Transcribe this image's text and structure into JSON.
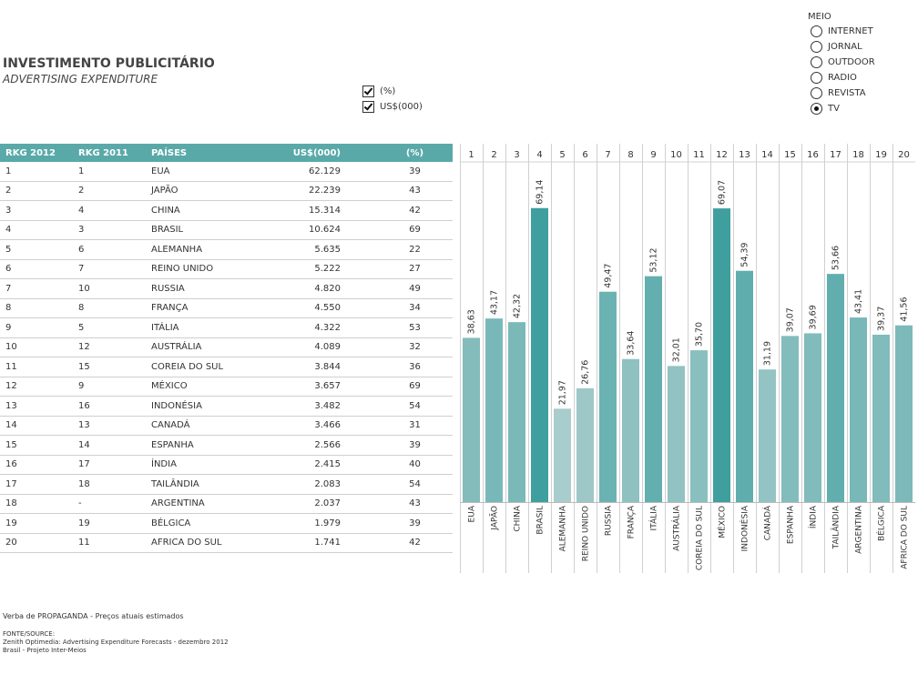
{
  "header": {
    "title": "INVESTIMENTO PUBLICITÁRIO",
    "subtitle": "ADVERTISING EXPENDITURE"
  },
  "checkboxes": [
    {
      "label": "(%)",
      "checked": true
    },
    {
      "label": "US$(000)",
      "checked": true
    }
  ],
  "meio": {
    "label": "MEIO",
    "options": [
      {
        "label": "INTERNET",
        "selected": false
      },
      {
        "label": "JORNAL",
        "selected": false
      },
      {
        "label": "OUTDOOR",
        "selected": false
      },
      {
        "label": "RADIO",
        "selected": false
      },
      {
        "label": "REVISTA",
        "selected": false
      },
      {
        "label": "TV",
        "selected": true
      }
    ]
  },
  "table": {
    "headers": [
      "RKG 2012",
      "RKG 2011",
      "PAÍSES",
      "US$(000)",
      "(%)"
    ],
    "rows": [
      [
        "1",
        "1",
        "EUA",
        "62.129",
        "39"
      ],
      [
        "2",
        "2",
        "JAPÃO",
        "22.239",
        "43"
      ],
      [
        "3",
        "4",
        "CHINA",
        "15.314",
        "42"
      ],
      [
        "4",
        "3",
        "BRASIL",
        "10.624",
        "69"
      ],
      [
        "5",
        "6",
        "ALEMANHA",
        "5.635",
        "22"
      ],
      [
        "6",
        "7",
        "REINO UNIDO",
        "5.222",
        "27"
      ],
      [
        "7",
        "10",
        "RUSSIA",
        "4.820",
        "49"
      ],
      [
        "8",
        "8",
        "FRANÇA",
        "4.550",
        "34"
      ],
      [
        "9",
        "5",
        "ITÁLIA",
        "4.322",
        "53"
      ],
      [
        "10",
        "12",
        "AUSTRÁLIA",
        "4.089",
        "32"
      ],
      [
        "11",
        "15",
        "COREIA DO SUL",
        "3.844",
        "36"
      ],
      [
        "12",
        "9",
        "MÉXICO",
        "3.657",
        "69"
      ],
      [
        "13",
        "16",
        "INDONÉSIA",
        "3.482",
        "54"
      ],
      [
        "14",
        "13",
        "CANADÁ",
        "3.466",
        "31"
      ],
      [
        "15",
        "14",
        "ESPANHA",
        "2.566",
        "39"
      ],
      [
        "16",
        "17",
        "ÍNDIA",
        "2.415",
        "40"
      ],
      [
        "17",
        "18",
        "TAILÂNDIA",
        "2.083",
        "54"
      ],
      [
        "18",
        "-",
        "ARGENTINA",
        "2.037",
        "43"
      ],
      [
        "19",
        "19",
        "BÉLGICA",
        "1.979",
        "39"
      ],
      [
        "20",
        "11",
        "AFRICA DO SUL",
        "1.741",
        "42"
      ]
    ]
  },
  "chart_data": {
    "type": "bar",
    "ranks": [
      "1",
      "2",
      "3",
      "4",
      "5",
      "6",
      "7",
      "8",
      "9",
      "10",
      "11",
      "12",
      "13",
      "14",
      "15",
      "16",
      "17",
      "18",
      "19",
      "20"
    ],
    "categories": [
      "EUA",
      "JAPÃO",
      "CHINA",
      "BRASIL",
      "ALEMANHA",
      "REINO UNIDO",
      "RUSSIA",
      "FRANÇA",
      "ITÁLIA",
      "AUSTRÁLIA",
      "COREIA DO SUL",
      "MÉXICO",
      "INDONÉSIA",
      "CANADÁ",
      "ESPANHA",
      "ÍNDIA",
      "TAILÂNDIA",
      "ARGENTINA",
      "BÉLGICA",
      "AFRICA DO SUL"
    ],
    "values": [
      38.63,
      43.17,
      42.32,
      69.14,
      21.97,
      26.76,
      49.47,
      33.64,
      53.12,
      32.01,
      35.7,
      69.07,
      54.39,
      31.19,
      39.07,
      39.69,
      53.66,
      43.41,
      39.37,
      41.56
    ],
    "value_labels": [
      "38,63",
      "43,17",
      "42,32",
      "69,14",
      "21,97",
      "26,76",
      "49,47",
      "33,64",
      "53,12",
      "32,01",
      "35,70",
      "69,07",
      "54,39",
      "31,19",
      "39,07",
      "39,69",
      "53,66",
      "43,41",
      "39,37",
      "41,56"
    ],
    "ylim": [
      0,
      80
    ],
    "colors": {
      "low": "#a9cccc",
      "high": "#3f9f9f"
    }
  },
  "footer": {
    "note": "Verba de PROPAGANDA - Preços atuais estimados",
    "source_lines": [
      "FONTE/SOURCE:",
      "Zenith Optimedia: Advertising Expenditure Forecasts - dezembro 2012",
      "Brasil - Projeto Inter-Meios"
    ]
  }
}
